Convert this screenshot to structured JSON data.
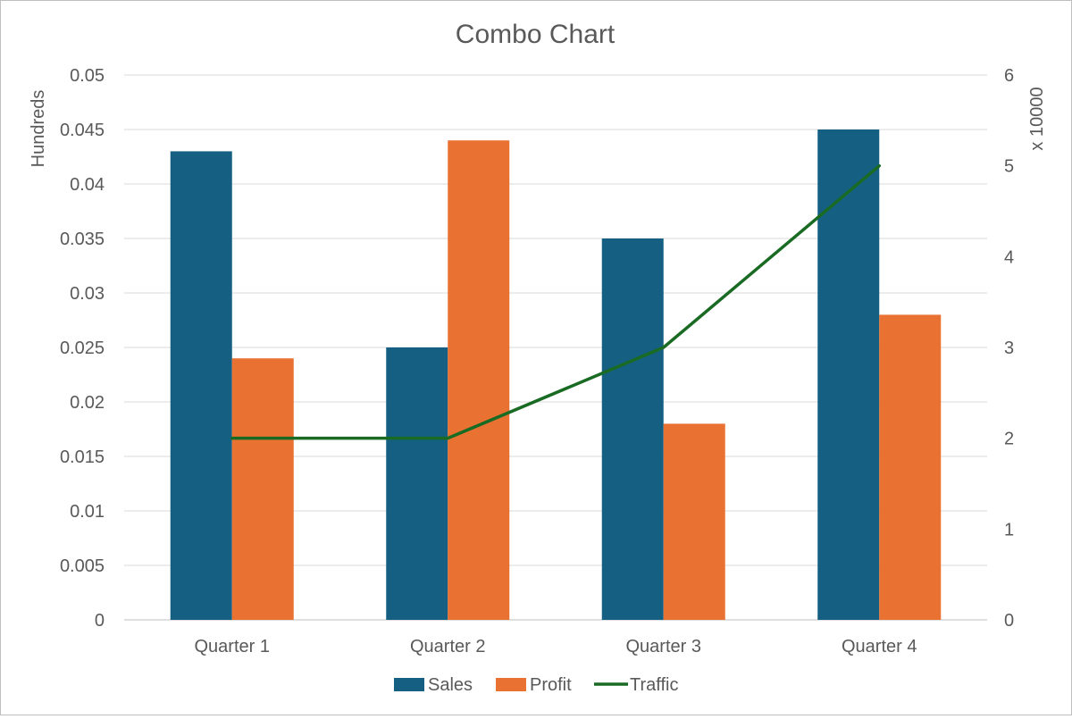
{
  "chart_data": {
    "type": "bar",
    "title": "Combo Chart",
    "categories": [
      "Quarter 1",
      "Quarter 2",
      "Quarter 3",
      "Quarter 4"
    ],
    "series": [
      {
        "name": "Sales",
        "kind": "bar",
        "axis": "left",
        "color": "#156082",
        "values": [
          0.043,
          0.025,
          0.035,
          0.045
        ]
      },
      {
        "name": "Profit",
        "kind": "bar",
        "axis": "left",
        "color": "#E97132",
        "values": [
          0.024,
          0.044,
          0.018,
          0.028
        ]
      },
      {
        "name": "Traffic",
        "kind": "line",
        "axis": "right",
        "color": "#196B24",
        "values": [
          2,
          2,
          3,
          5
        ]
      }
    ],
    "y_left": {
      "label": "Hundreds",
      "ylim": [
        0,
        0.05
      ],
      "ticks": [
        "0",
        "0.005",
        "0.01",
        "0.015",
        "0.02",
        "0.025",
        "0.03",
        "0.035",
        "0.04",
        "0.045",
        "0.05"
      ]
    },
    "y_right": {
      "label": "x 10000",
      "ylim": [
        0,
        6
      ],
      "ticks": [
        "0",
        "1",
        "2",
        "3",
        "4",
        "5",
        "6"
      ]
    },
    "grid": true,
    "legend_position": "bottom"
  }
}
